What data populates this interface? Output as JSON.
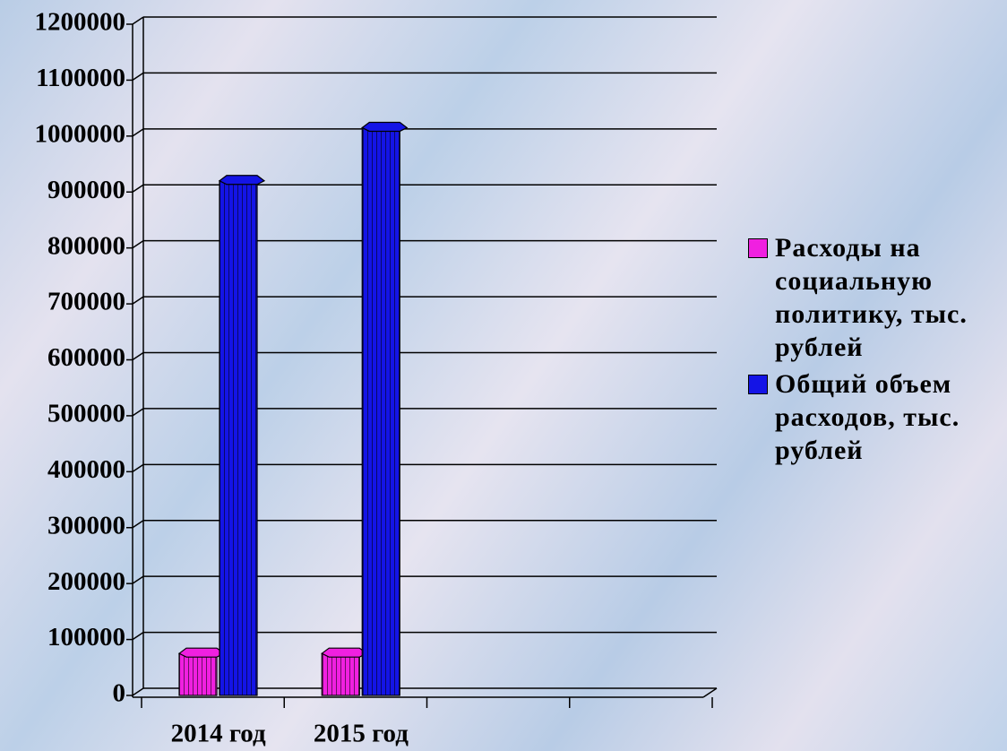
{
  "chart_data": {
    "type": "bar",
    "categories": [
      "2014 год",
      "2015 год",
      null,
      null
    ],
    "series": [
      {
        "name": "Расходы на социальную политику, тыс. рублей",
        "color": "#f020e0",
        "values": [
          75000,
          75000,
          null,
          null
        ]
      },
      {
        "name": "Общий объем расходов, тыс. рублей",
        "color": "#1414e6",
        "values": [
          920000,
          1015000,
          null,
          null
        ]
      }
    ],
    "ylim": [
      0,
      1200000
    ],
    "yticks": [
      0,
      100000,
      200000,
      300000,
      400000,
      500000,
      600000,
      700000,
      800000,
      900000,
      1000000,
      1100000,
      1200000
    ],
    "grid": true,
    "legend": "right"
  }
}
